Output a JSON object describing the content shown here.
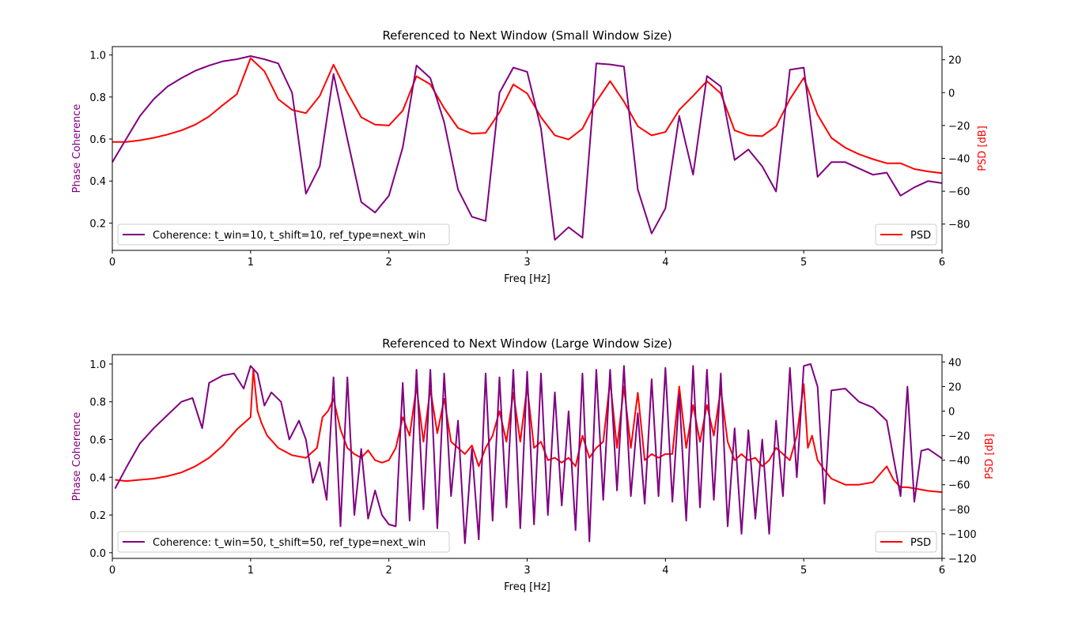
{
  "chart_data": [
    {
      "type": "line",
      "title": "Referenced to Next Window (Small Window Size)",
      "xlabel": "Freq [Hz]",
      "ylabel_left": "Phase Coherence",
      "ylabel_right": "PSD [dB]",
      "xlim": [
        0,
        6
      ],
      "ylim_left": [
        0.07,
        1.04
      ],
      "ylim_right": [
        -96,
        28
      ],
      "xticks": [
        "0",
        "1",
        "2",
        "3",
        "4",
        "5",
        "6"
      ],
      "yticks_left": [
        "0.2",
        "0.4",
        "0.6",
        "0.8",
        "1.0"
      ],
      "yticks_right": [
        "−80",
        "−60",
        "−40",
        "−20",
        "0",
        "20"
      ],
      "legend_left": {
        "placement": "lower-left",
        "label": "Coherence: t_win=10, t_shift=10, ref_type=next_win"
      },
      "legend_right": {
        "placement": "lower-right",
        "label": "PSD"
      },
      "colors": {
        "coherence": "#800080",
        "psd": "#ff0000"
      },
      "series": [
        {
          "name": "Coherence: t_win=10, t_shift=10, ref_type=next_win",
          "axis": "left",
          "x": [
            0,
            0.1,
            0.2,
            0.3,
            0.4,
            0.5,
            0.6,
            0.7,
            0.8,
            0.9,
            1.0,
            1.1,
            1.2,
            1.3,
            1.4,
            1.5,
            1.6,
            1.7,
            1.8,
            1.9,
            2.0,
            2.1,
            2.2,
            2.3,
            2.4,
            2.5,
            2.6,
            2.7,
            2.8,
            2.9,
            3.0,
            3.1,
            3.2,
            3.3,
            3.4,
            3.5,
            3.6,
            3.7,
            3.8,
            3.9,
            4.0,
            4.1,
            4.2,
            4.3,
            4.4,
            4.5,
            4.6,
            4.7,
            4.8,
            4.9,
            5.0,
            5.1,
            5.2,
            5.3,
            5.4,
            5.5,
            5.6,
            5.7,
            5.8,
            5.9,
            6.0
          ],
          "values": [
            0.49,
            0.6,
            0.71,
            0.79,
            0.85,
            0.89,
            0.925,
            0.95,
            0.97,
            0.98,
            0.995,
            0.98,
            0.96,
            0.82,
            0.34,
            0.47,
            0.91,
            0.6,
            0.3,
            0.25,
            0.33,
            0.56,
            0.95,
            0.89,
            0.68,
            0.36,
            0.23,
            0.21,
            0.82,
            0.94,
            0.92,
            0.65,
            0.12,
            0.18,
            0.13,
            0.96,
            0.955,
            0.945,
            0.36,
            0.15,
            0.27,
            0.71,
            0.43,
            0.9,
            0.85,
            0.5,
            0.55,
            0.47,
            0.35,
            0.93,
            0.94,
            0.42,
            0.49,
            0.49,
            0.46,
            0.43,
            0.44,
            0.33,
            0.37,
            0.4,
            0.39
          ]
        },
        {
          "name": "PSD",
          "axis": "right",
          "x": [
            0,
            0.1,
            0.2,
            0.3,
            0.4,
            0.5,
            0.6,
            0.7,
            0.8,
            0.9,
            1.0,
            1.1,
            1.2,
            1.3,
            1.4,
            1.5,
            1.6,
            1.7,
            1.8,
            1.9,
            2.0,
            2.1,
            2.2,
            2.3,
            2.4,
            2.5,
            2.6,
            2.7,
            2.8,
            2.9,
            3.0,
            3.1,
            3.2,
            3.3,
            3.4,
            3.5,
            3.6,
            3.7,
            3.8,
            3.9,
            4.0,
            4.1,
            4.2,
            4.3,
            4.4,
            4.5,
            4.6,
            4.7,
            4.8,
            4.9,
            5.0,
            5.1,
            5.2,
            5.3,
            5.4,
            5.5,
            5.6,
            5.7,
            5.8,
            5.9,
            6.0
          ],
          "values": [
            -30,
            -30,
            -29,
            -27.5,
            -25.5,
            -23,
            -19.5,
            -14.5,
            -7.5,
            -1,
            21,
            13,
            -4,
            -10.5,
            -12.5,
            -2,
            17,
            0,
            -15,
            -19.5,
            -20,
            -11,
            10,
            5,
            -9.5,
            -21.5,
            -25,
            -24.5,
            -12,
            5,
            -0.5,
            -15,
            -26,
            -28.5,
            -22,
            -5.5,
            7,
            -5.5,
            -20.5,
            -26,
            -24,
            -10.5,
            -2,
            7,
            -0.5,
            -23,
            -26,
            -26.5,
            -20.5,
            -4,
            9,
            -13.5,
            -27.5,
            -33.5,
            -37.5,
            -40.5,
            -43,
            -43,
            -46.5,
            -48,
            -49
          ]
        }
      ]
    },
    {
      "type": "line",
      "title": "Referenced to Next Window (Large Window Size)",
      "xlabel": "Freq [Hz]",
      "ylabel_left": "Phase Coherence",
      "ylabel_right": "PSD [dB]",
      "xlim": [
        0,
        6
      ],
      "ylim_left": [
        -0.03,
        1.05
      ],
      "ylim_right": [
        -120,
        46
      ],
      "xticks": [
        "0",
        "1",
        "2",
        "3",
        "4",
        "5",
        "6"
      ],
      "yticks_left": [
        "0.0",
        "0.2",
        "0.4",
        "0.6",
        "0.8",
        "1.0"
      ],
      "yticks_right": [
        "−120",
        "−100",
        "−80",
        "−60",
        "−40",
        "−20",
        "0",
        "20",
        "40"
      ],
      "legend_left": {
        "placement": "lower-left",
        "label": "Coherence: t_win=50, t_shift=50, ref_type=next_win"
      },
      "legend_right": {
        "placement": "lower-right",
        "label": "PSD"
      },
      "colors": {
        "coherence": "#800080",
        "psd": "#ff0000"
      },
      "series": [
        {
          "name": "Coherence: t_win=50, t_shift=50, ref_type=next_win",
          "axis": "left",
          "x": [
            0.02,
            0.1,
            0.2,
            0.3,
            0.4,
            0.5,
            0.58,
            0.65,
            0.7,
            0.8,
            0.88,
            0.95,
            1.0,
            1.05,
            1.1,
            1.15,
            1.22,
            1.28,
            1.35,
            1.4,
            1.45,
            1.5,
            1.55,
            1.6,
            1.65,
            1.7,
            1.75,
            1.8,
            1.85,
            1.9,
            1.95,
            2.0,
            2.05,
            2.1,
            2.15,
            2.2,
            2.25,
            2.3,
            2.35,
            2.4,
            2.45,
            2.5,
            2.55,
            2.6,
            2.65,
            2.7,
            2.75,
            2.8,
            2.85,
            2.9,
            2.95,
            3.0,
            3.05,
            3.1,
            3.15,
            3.2,
            3.25,
            3.3,
            3.35,
            3.4,
            3.45,
            3.5,
            3.55,
            3.6,
            3.65,
            3.7,
            3.75,
            3.8,
            3.85,
            3.9,
            3.95,
            4.0,
            4.05,
            4.1,
            4.15,
            4.2,
            4.25,
            4.3,
            4.35,
            4.4,
            4.45,
            4.5,
            4.55,
            4.6,
            4.65,
            4.7,
            4.75,
            4.8,
            4.85,
            4.9,
            4.95,
            5.0,
            5.05,
            5.1,
            5.15,
            5.2,
            5.3,
            5.4,
            5.5,
            5.6,
            5.65,
            5.7,
            5.75,
            5.8,
            5.85,
            5.9,
            6.0
          ],
          "values": [
            0.34,
            0.45,
            0.58,
            0.66,
            0.73,
            0.8,
            0.82,
            0.66,
            0.9,
            0.94,
            0.95,
            0.87,
            0.99,
            0.95,
            0.78,
            0.85,
            0.8,
            0.6,
            0.7,
            0.6,
            0.37,
            0.48,
            0.28,
            0.93,
            0.14,
            0.93,
            0.2,
            0.55,
            0.18,
            0.33,
            0.2,
            0.15,
            0.14,
            0.9,
            0.17,
            0.97,
            0.23,
            0.97,
            0.13,
            0.95,
            0.3,
            0.7,
            0.05,
            0.55,
            0.07,
            0.95,
            0.17,
            0.93,
            0.24,
            0.97,
            0.13,
            0.96,
            0.15,
            0.95,
            0.2,
            0.85,
            0.25,
            0.75,
            0.12,
            0.95,
            0.06,
            0.97,
            0.28,
            0.97,
            0.33,
            0.99,
            0.3,
            0.74,
            0.26,
            0.92,
            0.3,
            0.98,
            0.27,
            0.84,
            0.17,
            0.99,
            0.24,
            0.97,
            0.28,
            0.95,
            0.14,
            0.66,
            0.1,
            0.65,
            0.18,
            0.6,
            0.1,
            0.7,
            0.3,
            0.98,
            0.4,
            0.99,
            1.0,
            0.88,
            0.26,
            0.86,
            0.87,
            0.8,
            0.77,
            0.7,
            0.5,
            0.3,
            0.88,
            0.27,
            0.54,
            0.55,
            0.5
          ]
        },
        {
          "name": "PSD",
          "axis": "right",
          "x": [
            0.02,
            0.1,
            0.2,
            0.3,
            0.4,
            0.5,
            0.6,
            0.7,
            0.8,
            0.9,
            0.95,
            1.0,
            1.02,
            1.05,
            1.08,
            1.12,
            1.2,
            1.3,
            1.4,
            1.48,
            1.52,
            1.56,
            1.6,
            1.65,
            1.7,
            1.75,
            1.8,
            1.85,
            1.9,
            1.95,
            2.0,
            2.05,
            2.1,
            2.15,
            2.2,
            2.25,
            2.3,
            2.35,
            2.4,
            2.45,
            2.5,
            2.55,
            2.6,
            2.65,
            2.7,
            2.75,
            2.8,
            2.85,
            2.9,
            2.95,
            3.0,
            3.05,
            3.1,
            3.15,
            3.2,
            3.25,
            3.3,
            3.35,
            3.4,
            3.45,
            3.5,
            3.55,
            3.6,
            3.65,
            3.7,
            3.75,
            3.8,
            3.85,
            3.9,
            3.95,
            4.0,
            4.05,
            4.1,
            4.15,
            4.2,
            4.25,
            4.3,
            4.35,
            4.4,
            4.45,
            4.5,
            4.55,
            4.6,
            4.65,
            4.7,
            4.75,
            4.8,
            4.85,
            4.9,
            4.95,
            5.0,
            5.03,
            5.06,
            5.1,
            5.15,
            5.2,
            5.3,
            5.4,
            5.5,
            5.6,
            5.65,
            5.7,
            5.75,
            5.8,
            5.9,
            6.0
          ],
          "values": [
            -56,
            -57,
            -56,
            -55,
            -53,
            -50,
            -45,
            -38,
            -28,
            -15,
            -10,
            -5,
            34,
            0,
            -10,
            -20,
            -30,
            -36,
            -38,
            -30,
            -5,
            0,
            10,
            -15,
            -30,
            -35,
            -38,
            -32,
            -40,
            -42,
            -40,
            -30,
            -5,
            -20,
            20,
            -25,
            18,
            -18,
            10,
            -25,
            -30,
            -35,
            -28,
            -45,
            -30,
            -20,
            0,
            -25,
            15,
            -25,
            20,
            -30,
            -25,
            -40,
            -38,
            -42,
            -38,
            -45,
            -20,
            -38,
            -30,
            -25,
            25,
            -30,
            20,
            -30,
            15,
            -40,
            -35,
            -38,
            -35,
            -35,
            20,
            -30,
            5,
            -25,
            5,
            -20,
            18,
            -25,
            -40,
            -35,
            -40,
            -38,
            -45,
            -40,
            -30,
            -35,
            -40,
            -20,
            22,
            -30,
            -20,
            -40,
            -48,
            -55,
            -60,
            -60,
            -58,
            -45,
            -56,
            -62,
            -62,
            -63,
            -65,
            -66
          ]
        }
      ]
    }
  ]
}
